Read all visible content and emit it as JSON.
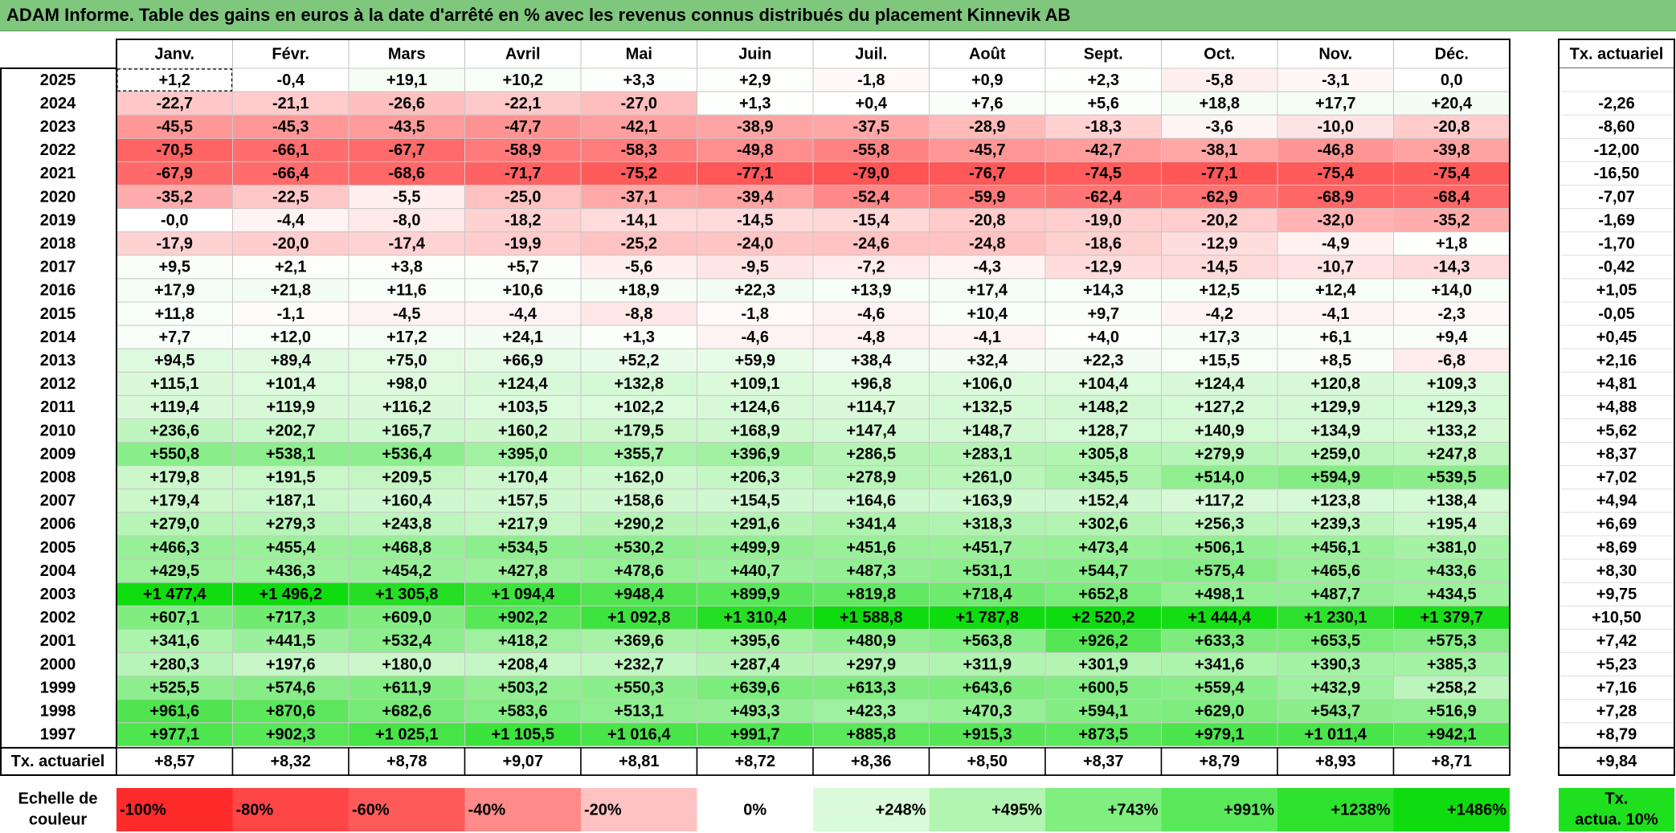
{
  "title": "ADAM Informe. Table des gains en euros à la date d'arrêté en % avec les revenus connus distribués du placement Kinnevik AB",
  "months": [
    "Janv.",
    "Févr.",
    "Mars",
    "Avril",
    "Mai",
    "Juin",
    "Juil.",
    "Août",
    "Sept.",
    "Oct.",
    "Nov.",
    "Déc."
  ],
  "rate_header": "Tx. actuariel",
  "rows": [
    {
      "year": "2025",
      "values": [
        "+1,2",
        "-0,4",
        "+19,1",
        "+10,2",
        "+3,3",
        "+2,9",
        "-1,8",
        "+0,9",
        "+2,3",
        "-5,8",
        "-3,1",
        "0,0"
      ],
      "rate": ""
    },
    {
      "year": "2024",
      "values": [
        "-22,7",
        "-21,1",
        "-26,6",
        "-22,1",
        "-27,0",
        "+1,3",
        "+0,4",
        "+7,6",
        "+5,6",
        "+18,8",
        "+17,7",
        "+20,4"
      ],
      "rate": "-2,26"
    },
    {
      "year": "2023",
      "values": [
        "-45,5",
        "-45,3",
        "-43,5",
        "-47,7",
        "-42,1",
        "-38,9",
        "-37,5",
        "-28,9",
        "-18,3",
        "-3,6",
        "-10,0",
        "-20,8"
      ],
      "rate": "-8,60"
    },
    {
      "year": "2022",
      "values": [
        "-70,5",
        "-66,1",
        "-67,7",
        "-58,9",
        "-58,3",
        "-49,8",
        "-55,8",
        "-45,7",
        "-42,7",
        "-38,1",
        "-46,8",
        "-39,8"
      ],
      "rate": "-12,00"
    },
    {
      "year": "2021",
      "values": [
        "-67,9",
        "-66,4",
        "-68,6",
        "-71,7",
        "-75,2",
        "-77,1",
        "-79,0",
        "-76,7",
        "-74,5",
        "-77,1",
        "-75,4",
        "-75,4"
      ],
      "rate": "-16,50"
    },
    {
      "year": "2020",
      "values": [
        "-35,2",
        "-22,5",
        "-5,5",
        "-25,0",
        "-37,1",
        "-39,4",
        "-52,4",
        "-59,9",
        "-62,4",
        "-62,9",
        "-68,9",
        "-68,4"
      ],
      "rate": "-7,07"
    },
    {
      "year": "2019",
      "values": [
        "-0,0",
        "-4,4",
        "-8,0",
        "-18,2",
        "-14,1",
        "-14,5",
        "-15,4",
        "-20,8",
        "-19,0",
        "-20,2",
        "-32,0",
        "-35,2"
      ],
      "rate": "-1,69"
    },
    {
      "year": "2018",
      "values": [
        "-17,9",
        "-20,0",
        "-17,4",
        "-19,9",
        "-25,2",
        "-24,0",
        "-24,6",
        "-24,8",
        "-18,6",
        "-12,9",
        "-4,9",
        "+1,8"
      ],
      "rate": "-1,70"
    },
    {
      "year": "2017",
      "values": [
        "+9,5",
        "+2,1",
        "+3,8",
        "+5,7",
        "-5,6",
        "-9,5",
        "-7,2",
        "-4,3",
        "-12,9",
        "-14,5",
        "-10,7",
        "-14,3"
      ],
      "rate": "-0,42"
    },
    {
      "year": "2016",
      "values": [
        "+17,9",
        "+21,8",
        "+11,6",
        "+10,6",
        "+18,9",
        "+22,3",
        "+13,9",
        "+17,4",
        "+14,3",
        "+12,5",
        "+12,4",
        "+14,0"
      ],
      "rate": "+1,05"
    },
    {
      "year": "2015",
      "values": [
        "+11,8",
        "-1,1",
        "-4,5",
        "-4,4",
        "-8,8",
        "-1,8",
        "-4,6",
        "+10,4",
        "+9,7",
        "-4,2",
        "-4,1",
        "-2,3"
      ],
      "rate": "-0,05"
    },
    {
      "year": "2014",
      "values": [
        "+7,7",
        "+12,0",
        "+17,2",
        "+24,1",
        "+1,3",
        "-4,6",
        "-4,8",
        "-4,1",
        "+4,0",
        "+17,3",
        "+6,1",
        "+9,4"
      ],
      "rate": "+0,45"
    },
    {
      "year": "2013",
      "values": [
        "+94,5",
        "+89,4",
        "+75,0",
        "+66,9",
        "+52,2",
        "+59,9",
        "+38,4",
        "+32,4",
        "+22,3",
        "+15,5",
        "+8,5",
        "-6,8"
      ],
      "rate": "+2,16"
    },
    {
      "year": "2012",
      "values": [
        "+115,1",
        "+101,4",
        "+98,0",
        "+124,4",
        "+132,8",
        "+109,1",
        "+96,8",
        "+106,0",
        "+104,4",
        "+124,4",
        "+120,8",
        "+109,3"
      ],
      "rate": "+4,81"
    },
    {
      "year": "2011",
      "values": [
        "+119,4",
        "+119,9",
        "+116,2",
        "+103,5",
        "+102,2",
        "+124,6",
        "+114,7",
        "+132,5",
        "+148,2",
        "+127,2",
        "+129,9",
        "+129,3"
      ],
      "rate": "+4,88"
    },
    {
      "year": "2010",
      "values": [
        "+236,6",
        "+202,7",
        "+165,7",
        "+160,2",
        "+179,5",
        "+168,9",
        "+147,4",
        "+148,7",
        "+128,7",
        "+140,9",
        "+134,9",
        "+133,2"
      ],
      "rate": "+5,62"
    },
    {
      "year": "2009",
      "values": [
        "+550,8",
        "+538,1",
        "+536,4",
        "+395,0",
        "+355,7",
        "+396,9",
        "+286,5",
        "+283,1",
        "+305,8",
        "+279,9",
        "+259,0",
        "+247,8"
      ],
      "rate": "+8,37"
    },
    {
      "year": "2008",
      "values": [
        "+179,8",
        "+191,5",
        "+209,5",
        "+170,4",
        "+162,0",
        "+206,3",
        "+278,9",
        "+261,0",
        "+345,5",
        "+514,0",
        "+594,9",
        "+539,5"
      ],
      "rate": "+7,02"
    },
    {
      "year": "2007",
      "values": [
        "+179,4",
        "+187,1",
        "+160,4",
        "+157,5",
        "+158,6",
        "+154,5",
        "+164,6",
        "+163,9",
        "+152,4",
        "+117,2",
        "+123,8",
        "+138,4"
      ],
      "rate": "+4,94"
    },
    {
      "year": "2006",
      "values": [
        "+279,0",
        "+279,3",
        "+243,8",
        "+217,9",
        "+290,2",
        "+291,6",
        "+341,4",
        "+318,3",
        "+302,6",
        "+256,3",
        "+239,3",
        "+195,4"
      ],
      "rate": "+6,69"
    },
    {
      "year": "2005",
      "values": [
        "+466,3",
        "+455,4",
        "+468,8",
        "+534,5",
        "+530,2",
        "+499,9",
        "+451,6",
        "+451,7",
        "+473,4",
        "+506,1",
        "+456,1",
        "+381,0"
      ],
      "rate": "+8,69"
    },
    {
      "year": "2004",
      "values": [
        "+429,5",
        "+436,3",
        "+454,2",
        "+427,8",
        "+478,6",
        "+440,7",
        "+487,3",
        "+531,1",
        "+544,7",
        "+575,4",
        "+465,6",
        "+433,6"
      ],
      "rate": "+8,30"
    },
    {
      "year": "2003",
      "values": [
        "+1 477,4",
        "+1 496,2",
        "+1 305,8",
        "+1 094,4",
        "+948,4",
        "+899,9",
        "+819,8",
        "+718,4",
        "+652,8",
        "+498,1",
        "+487,7",
        "+434,5"
      ],
      "rate": "+9,75"
    },
    {
      "year": "2002",
      "values": [
        "+607,1",
        "+717,3",
        "+609,0",
        "+902,2",
        "+1 092,8",
        "+1 310,4",
        "+1 588,8",
        "+1 787,8",
        "+2 520,2",
        "+1 444,4",
        "+1 230,1",
        "+1 379,7"
      ],
      "rate": "+10,50"
    },
    {
      "year": "2001",
      "values": [
        "+341,6",
        "+441,5",
        "+532,4",
        "+418,2",
        "+369,6",
        "+395,6",
        "+480,9",
        "+563,8",
        "+926,2",
        "+633,3",
        "+653,5",
        "+575,3"
      ],
      "rate": "+7,42"
    },
    {
      "year": "2000",
      "values": [
        "+280,3",
        "+197,6",
        "+180,0",
        "+208,4",
        "+232,7",
        "+287,4",
        "+297,9",
        "+311,9",
        "+301,9",
        "+341,6",
        "+390,3",
        "+385,3"
      ],
      "rate": "+5,23"
    },
    {
      "year": "1999",
      "values": [
        "+525,5",
        "+574,6",
        "+611,9",
        "+503,2",
        "+550,3",
        "+639,6",
        "+613,3",
        "+643,6",
        "+600,5",
        "+559,4",
        "+432,9",
        "+258,2"
      ],
      "rate": "+7,16"
    },
    {
      "year": "1998",
      "values": [
        "+961,6",
        "+870,6",
        "+682,6",
        "+583,6",
        "+513,1",
        "+493,3",
        "+423,3",
        "+470,3",
        "+594,1",
        "+629,0",
        "+543,7",
        "+516,9"
      ],
      "rate": "+7,28"
    },
    {
      "year": "1997",
      "values": [
        "+977,1",
        "+902,3",
        "+1 025,1",
        "+1 105,5",
        "+1 016,4",
        "+991,7",
        "+885,8",
        "+915,3",
        "+873,5",
        "+979,1",
        "+1 011,4",
        "+942,1"
      ],
      "rate": "+8,79"
    }
  ],
  "footer": {
    "label": "Tx. actuariel",
    "values": [
      "+8,57",
      "+8,32",
      "+8,78",
      "+9,07",
      "+8,81",
      "+8,72",
      "+8,36",
      "+8,50",
      "+8,37",
      "+8,79",
      "+8,93",
      "+8,71"
    ],
    "rate": "+9,84"
  },
  "scale": {
    "label_line1": "Echelle de",
    "label_line2": "couleur",
    "items": [
      {
        "label": "-100%",
        "color": "#ff2b2b",
        "align": "left"
      },
      {
        "label": "-80%",
        "color": "#ff4646",
        "align": "left"
      },
      {
        "label": "-60%",
        "color": "#ff5a5a",
        "align": "left"
      },
      {
        "label": "-40%",
        "color": "#ff8a8a",
        "align": "left"
      },
      {
        "label": "-20%",
        "color": "#ffc2c2",
        "align": "left"
      },
      {
        "label": "0%",
        "color": "#ffffff",
        "align": "center"
      },
      {
        "label": "+248%",
        "color": "#d9fbd9",
        "align": "right"
      },
      {
        "label": "+495%",
        "color": "#b2f5b2",
        "align": "right"
      },
      {
        "label": "+743%",
        "color": "#80ef80",
        "align": "right"
      },
      {
        "label": "+991%",
        "color": "#5ae95a",
        "align": "right"
      },
      {
        "label": "+1238%",
        "color": "#2ee22e",
        "align": "right"
      },
      {
        "label": "+1486%",
        "color": "#0fdc0f",
        "align": "right"
      }
    ],
    "badge_line1": "Tx.",
    "badge_line2": "actua. 10%",
    "badge_color": "#1ee01e"
  },
  "chart_data": {
    "type": "heatmap",
    "title": "ADAM Informe. Table des gains en euros à la date d'arrêté en % avec les revenus connus distribués du placement Kinnevik AB",
    "x": [
      "Janv.",
      "Févr.",
      "Mars",
      "Avril",
      "Mai",
      "Juin",
      "Juil.",
      "Août",
      "Sept.",
      "Oct.",
      "Nov.",
      "Déc."
    ],
    "y": [
      "2025",
      "2024",
      "2023",
      "2022",
      "2021",
      "2020",
      "2019",
      "2018",
      "2017",
      "2016",
      "2015",
      "2014",
      "2013",
      "2012",
      "2011",
      "2010",
      "2009",
      "2008",
      "2007",
      "2006",
      "2005",
      "2004",
      "2003",
      "2002",
      "2001",
      "2000",
      "1999",
      "1998",
      "1997"
    ],
    "color_scale": {
      "min": -100,
      "max": 1486,
      "low_color": "#ff2b2b",
      "mid_color": "#ffffff",
      "high_color": "#0fdc0f"
    }
  }
}
